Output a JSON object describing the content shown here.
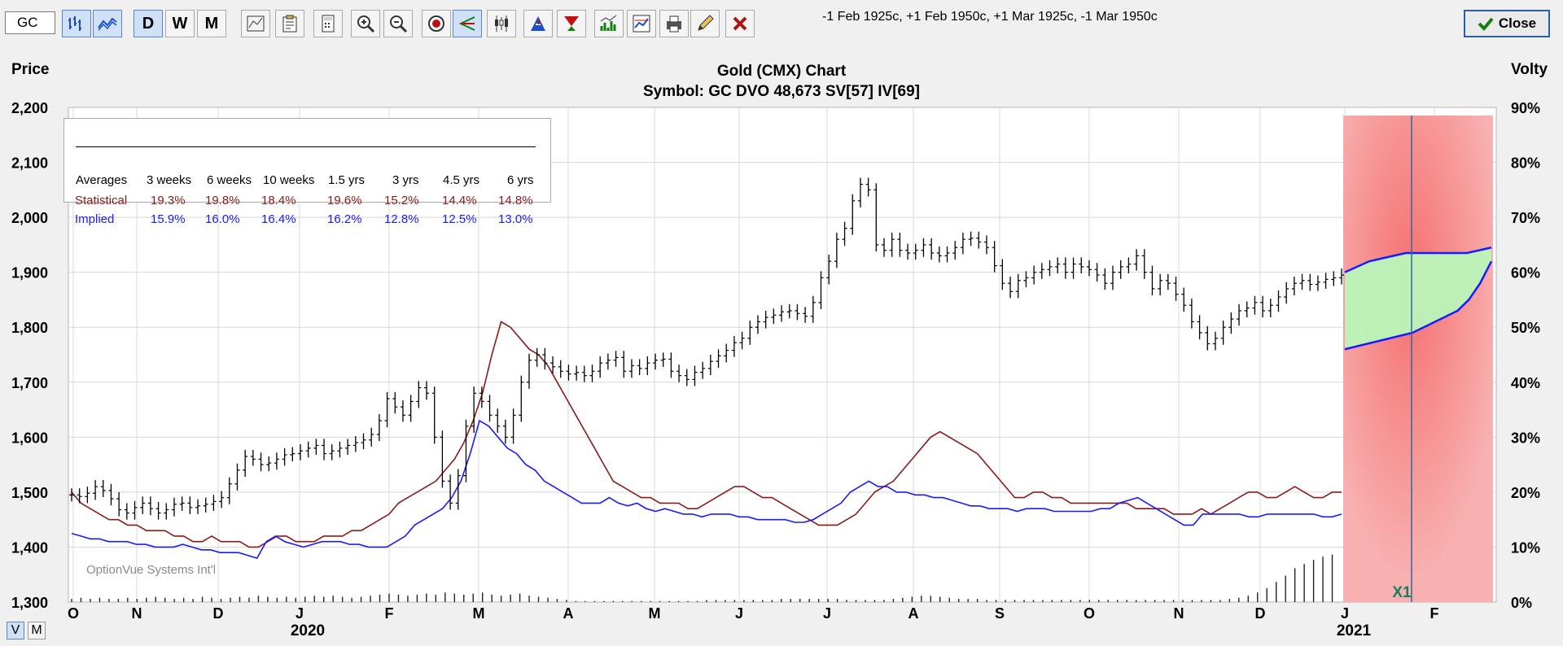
{
  "toolbar": {
    "symbol": "GC",
    "period_buttons": [
      "D",
      "W",
      "M"
    ],
    "contracts": "-1 Feb 1925c, +1 Feb 1950c, +1 Mar 1925c, -1 Mar 1950c",
    "close_label": "Close"
  },
  "chart_data": {
    "type": "line",
    "title": "Gold (CMX) Chart",
    "subtitle": "Symbol: GC  DVO 48,673  SV[57]  IV[69]",
    "left_axis_label": "Price",
    "right_axis_label": "Volty",
    "ylim": [
      1300,
      2200
    ],
    "y_ticks": [
      "2,200",
      "2,100",
      "2,000",
      "1,900",
      "1,800",
      "1,700",
      "1,600",
      "1,500",
      "1,400",
      "1,300"
    ],
    "y2lim": [
      0,
      90
    ],
    "y2_ticks": [
      "90%",
      "80%",
      "70%",
      "60%",
      "50%",
      "40%",
      "30%",
      "20%",
      "10%",
      "0%"
    ],
    "x_months": [
      "O",
      "N",
      "D",
      "J",
      "F",
      "M",
      "A",
      "M",
      "J",
      "J",
      "A",
      "S",
      "O",
      "N",
      "D",
      "J",
      "F"
    ],
    "x_years": [
      "2020",
      "2021"
    ],
    "projection_marker": "X1",
    "watermark": "OptionVue Systems Int'l",
    "grid": true,
    "price_series": {
      "name": "",
      "values": [
        1495,
        1492,
        1498,
        1510,
        1503,
        1488,
        1468,
        1462,
        1472,
        1480,
        1470,
        1462,
        1468,
        1478,
        1480,
        1472,
        1475,
        1478,
        1483,
        1490,
        1515,
        1540,
        1565,
        1560,
        1550,
        1553,
        1560,
        1568,
        1570,
        1575,
        1580,
        1585,
        1570,
        1575,
        1580,
        1585,
        1590,
        1595,
        1605,
        1630,
        1670,
        1655,
        1640,
        1665,
        1690,
        1680,
        1600,
        1520,
        1480,
        1530,
        1620,
        1680,
        1665,
        1640,
        1620,
        1600,
        1640,
        1700,
        1740,
        1750,
        1735,
        1728,
        1720,
        1715,
        1718,
        1712,
        1720,
        1735,
        1740,
        1745,
        1720,
        1730,
        1725,
        1735,
        1740,
        1742,
        1720,
        1712,
        1705,
        1718,
        1725,
        1738,
        1748,
        1758,
        1772,
        1780,
        1800,
        1810,
        1818,
        1822,
        1828,
        1830,
        1825,
        1820,
        1845,
        1890,
        1920,
        1960,
        1980,
        2030,
        2060,
        2050,
        1950,
        1940,
        1960,
        1940,
        1935,
        1940,
        1950,
        1935,
        1930,
        1935,
        1945,
        1960,
        1962,
        1955,
        1945,
        1912,
        1880,
        1865,
        1885,
        1890,
        1900,
        1905,
        1910,
        1915,
        1900,
        1915,
        1910,
        1905,
        1895,
        1880,
        1900,
        1910,
        1915,
        1930,
        1900,
        1870,
        1885,
        1880,
        1860,
        1840,
        1810,
        1790,
        1770,
        1780,
        1800,
        1815,
        1830,
        1835,
        1845,
        1830,
        1840,
        1855,
        1870,
        1880,
        1885,
        1878,
        1882,
        1887,
        1890,
        1895
      ]
    },
    "statistical_vol_series": {
      "name": "Statistical",
      "values": [
        20,
        18,
        17,
        16,
        15,
        15,
        14,
        14,
        13,
        13,
        13,
        12,
        12,
        11,
        11,
        12,
        11,
        11,
        11,
        10,
        10,
        11,
        12,
        12,
        11,
        11,
        11,
        12,
        12,
        12,
        13,
        13,
        14,
        15,
        16,
        18,
        19,
        20,
        21,
        22,
        24,
        26,
        29,
        33,
        38,
        45,
        51,
        50,
        48,
        46,
        45,
        43,
        40,
        37,
        34,
        31,
        28,
        25,
        22,
        21,
        20,
        19,
        19,
        18,
        18,
        18,
        17,
        17,
        18,
        19,
        20,
        21,
        21,
        20,
        19,
        19,
        18,
        17,
        16,
        15,
        14,
        14,
        14,
        15,
        16,
        18,
        20,
        21,
        22,
        24,
        26,
        28,
        30,
        31,
        30,
        29,
        28,
        27,
        25,
        23,
        21,
        19,
        19,
        20,
        20,
        19,
        19,
        18,
        18,
        18,
        18,
        18,
        18,
        18,
        17,
        17,
        17,
        17,
        16,
        16,
        16,
        17,
        16,
        17,
        18,
        19,
        20,
        20,
        19,
        19,
        20,
        21,
        20,
        19,
        19,
        20,
        20
      ]
    },
    "implied_vol_series": {
      "name": "Implied",
      "values": [
        12.5,
        12,
        11.5,
        11.5,
        11,
        11,
        11,
        10.5,
        10.5,
        10,
        10,
        10,
        10.5,
        10,
        9.5,
        9.5,
        9,
        9,
        9,
        8.5,
        8,
        11,
        12,
        11,
        10.5,
        10,
        10.5,
        11,
        11,
        11,
        10.5,
        10.5,
        10,
        10,
        10,
        11,
        12,
        14,
        15,
        16,
        17,
        19,
        22,
        27,
        33,
        32,
        30,
        28,
        27,
        25,
        24,
        22,
        21,
        20,
        19,
        18,
        18,
        18,
        19,
        18,
        17.5,
        18,
        17,
        16.5,
        17,
        16.5,
        16,
        16,
        15.5,
        16,
        16,
        16,
        15.5,
        15.5,
        15,
        15,
        15,
        15,
        14.5,
        14.5,
        15,
        16,
        17,
        18,
        20,
        21,
        22,
        21,
        21,
        20,
        20,
        19.5,
        19.5,
        19,
        19,
        18.5,
        18,
        17.5,
        17.5,
        17,
        17,
        17,
        16.5,
        17,
        17,
        17,
        16.5,
        16.5,
        16.5,
        16.5,
        16.5,
        17,
        17,
        18,
        18.5,
        19,
        18,
        17,
        16,
        15,
        14,
        14,
        16,
        16,
        16,
        16,
        16,
        15.5,
        15.5,
        16,
        16,
        16,
        16,
        16,
        16,
        15.5,
        15.5,
        16
      ]
    },
    "volume_bars": [
      3,
      4,
      3,
      4,
      3,
      3,
      4,
      3,
      4,
      5,
      4,
      3,
      4,
      3,
      5,
      4,
      3,
      4,
      5,
      4,
      6,
      5,
      4,
      5,
      4,
      5,
      6,
      5,
      6,
      5,
      4,
      5,
      6,
      7,
      8,
      7,
      6,
      7,
      8,
      7,
      9,
      8,
      7,
      8,
      9,
      7,
      6,
      7,
      8,
      6,
      5,
      4,
      3,
      2,
      1,
      1,
      1,
      1,
      1,
      1,
      1,
      1,
      1,
      1,
      1,
      1,
      1,
      1,
      2,
      2,
      2,
      2,
      2,
      2,
      2,
      2,
      3,
      3,
      3,
      3,
      3,
      3,
      3,
      2,
      2,
      2,
      2,
      2,
      3,
      4,
      5,
      6,
      6,
      5,
      4,
      3,
      3,
      3,
      2,
      2,
      2,
      2,
      2,
      2,
      2,
      2,
      2,
      2,
      2,
      2,
      2,
      2,
      2,
      2,
      2,
      2,
      2,
      2,
      2,
      2,
      2,
      2,
      2,
      2,
      3,
      4,
      6,
      9,
      13,
      19,
      25,
      32,
      36,
      40,
      43,
      45
    ],
    "projection": {
      "upper_vol": [
        60,
        61,
        62,
        62.5,
        63,
        63.5,
        63.5,
        63.5,
        63.5,
        63.5,
        63.5,
        64,
        64.5
      ],
      "lower_vol": [
        46,
        46.5,
        47,
        47.5,
        48,
        48.5,
        49,
        50,
        51,
        52,
        53,
        55,
        58,
        62
      ]
    }
  },
  "averages_table": {
    "headers": [
      "Averages",
      "3 weeks",
      "6 weeks",
      "10 weeks",
      "1.5 yrs",
      "3 yrs",
      "4.5 yrs",
      "6 yrs"
    ],
    "rows": [
      {
        "label": "Statistical",
        "color": "#8b1a1a",
        "values": [
          "19.3%",
          "19.8%",
          "18.4%",
          "19.6%",
          "15.2%",
          "14.4%",
          "14.8%"
        ]
      },
      {
        "label": "Implied",
        "color": "#1a1aff",
        "values": [
          "15.9%",
          "16.0%",
          "16.4%",
          "16.2%",
          "12.8%",
          "12.5%",
          "13.0%"
        ]
      }
    ]
  },
  "bottom_toggle": [
    "V",
    "M"
  ],
  "colors": {
    "stat": "#8b1a1a",
    "implied": "#1a1aff",
    "price": "#000000",
    "projection_bg": "#f7a7a7",
    "projection_profit": "#b9f5b9"
  }
}
